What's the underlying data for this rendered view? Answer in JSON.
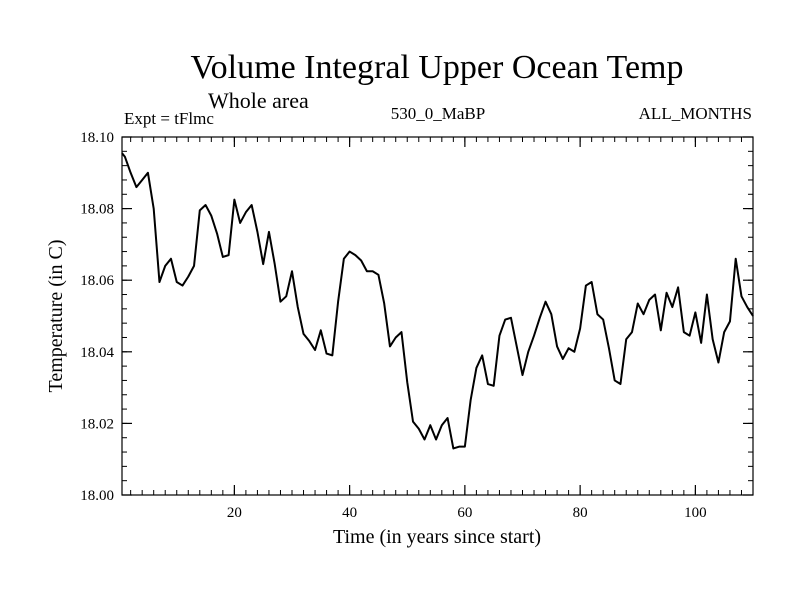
{
  "chart_data": {
    "type": "line",
    "title": "Volume Integral Upper Ocean Temp",
    "subtitle": "Whole area",
    "annotations": {
      "left": "Expt = tFlmc",
      "center": "530_0_MaBP",
      "right": "ALL_MONTHS"
    },
    "xlabel": "Time (in years since start)",
    "ylabel": "Temperature (in C)",
    "xlim": [
      0.5,
      110
    ],
    "ylim": [
      18.0,
      18.1
    ],
    "xticks": [
      20,
      40,
      60,
      80,
      100
    ],
    "xtick_labels": [
      "20",
      "40",
      "60",
      "80",
      "100"
    ],
    "yticks": [
      18.0,
      18.02,
      18.04,
      18.06,
      18.08,
      18.1
    ],
    "ytick_labels": [
      "18.00",
      "18.02",
      "18.04",
      "18.06",
      "18.08",
      "18.10"
    ],
    "x_minor_step": 2,
    "y_minor_step": 0.004,
    "line_color": "#000000",
    "series": [
      {
        "name": "Temperature",
        "x": [
          0.5,
          1,
          2,
          3,
          4,
          5,
          6,
          7,
          8,
          9,
          10,
          11,
          12,
          13,
          14,
          15,
          16,
          17,
          18,
          19,
          20,
          21,
          22,
          23,
          24,
          25,
          26,
          27,
          28,
          29,
          30,
          31,
          32,
          33,
          34,
          35,
          36,
          37,
          38,
          39,
          40,
          41,
          42,
          43,
          44,
          45,
          46,
          47,
          48,
          49,
          50,
          51,
          52,
          53,
          54,
          55,
          56,
          57,
          58,
          59,
          60,
          61,
          62,
          63,
          64,
          65,
          66,
          67,
          68,
          69,
          70,
          71,
          72,
          73,
          74,
          75,
          76,
          77,
          78,
          79,
          80,
          81,
          82,
          83,
          84,
          85,
          86,
          87,
          88,
          89,
          90,
          91,
          92,
          93,
          94,
          95,
          96,
          97,
          98,
          99,
          100,
          101,
          102,
          103,
          104,
          105,
          106,
          107,
          108,
          109,
          110
        ],
        "values": [
          18.0955,
          18.0945,
          18.09,
          18.086,
          18.088,
          18.09,
          18.08,
          18.0595,
          18.064,
          18.066,
          18.0595,
          18.0585,
          18.061,
          18.064,
          18.0795,
          18.081,
          18.078,
          18.073,
          18.0665,
          18.067,
          18.0825,
          18.076,
          18.079,
          18.081,
          18.0735,
          18.0645,
          18.0735,
          18.0645,
          18.054,
          18.0555,
          18.0625,
          18.0525,
          18.045,
          18.043,
          18.0405,
          18.046,
          18.0395,
          18.039,
          18.054,
          18.066,
          18.068,
          18.067,
          18.0655,
          18.0625,
          18.0625,
          18.0615,
          18.0535,
          18.0415,
          18.044,
          18.0455,
          18.0315,
          18.0205,
          18.0185,
          18.0155,
          18.0195,
          18.0155,
          18.0195,
          18.0215,
          18.013,
          18.0135,
          18.0135,
          18.0265,
          18.0355,
          18.039,
          18.031,
          18.0305,
          18.0445,
          18.049,
          18.0495,
          18.0415,
          18.0335,
          18.04,
          18.0445,
          18.0495,
          18.054,
          18.0505,
          18.0415,
          18.038,
          18.041,
          18.04,
          18.0465,
          18.0585,
          18.0595,
          18.0505,
          18.049,
          18.041,
          18.032,
          18.031,
          18.0435,
          18.0455,
          18.0535,
          18.0505,
          18.0545,
          18.056,
          18.046,
          18.0565,
          18.0525,
          18.058,
          18.0455,
          18.0445,
          18.051,
          18.0425,
          18.056,
          18.0435,
          18.037,
          18.0455,
          18.0485,
          18.066,
          18.0555,
          18.0525,
          18.05
        ]
      }
    ]
  }
}
